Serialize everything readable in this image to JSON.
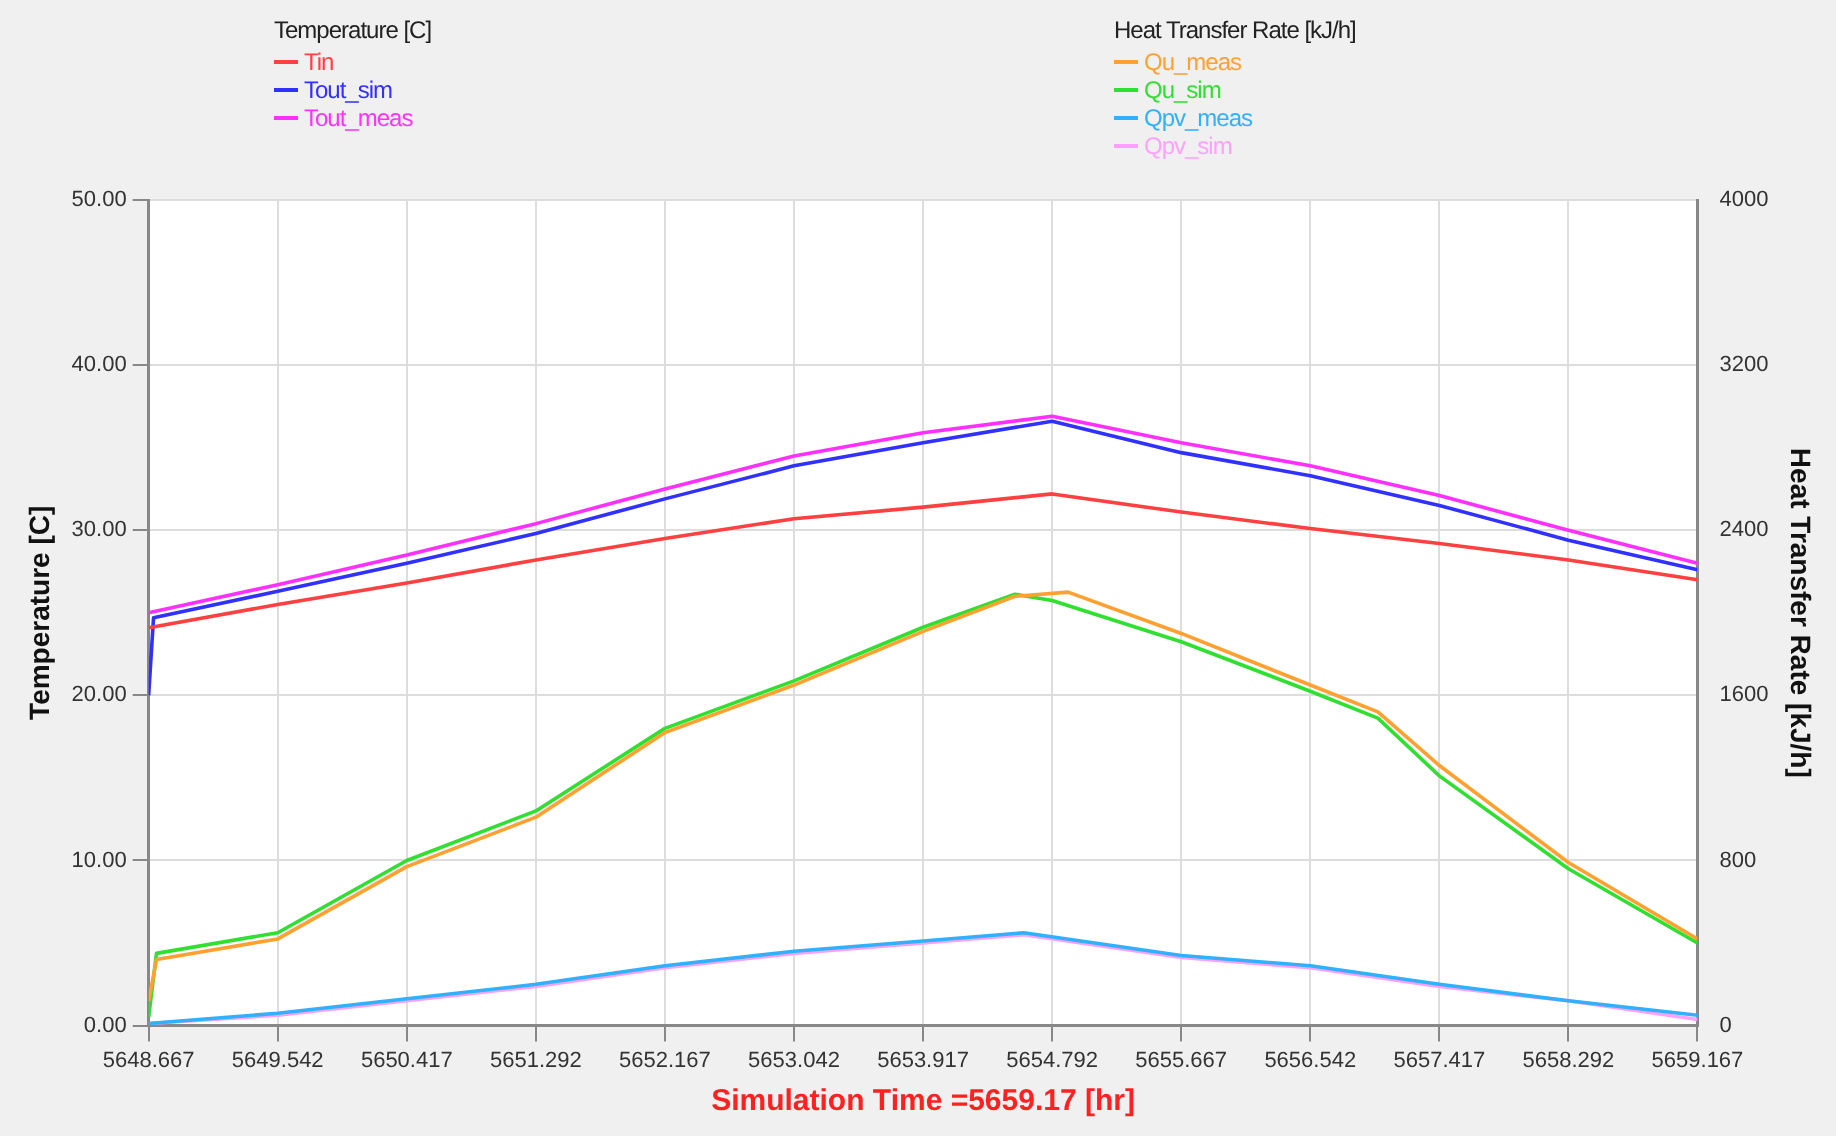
{
  "chart_data": {
    "type": "line",
    "xlabel": "Simulation Time =5659.17 [hr]",
    "ylabel": "Temperature [C]",
    "y2label": "Heat Transfer Rate [kJ/h]",
    "legend_title": [
      "Temperature [C]",
      "Heat Transfer Rate [kJ/h]"
    ],
    "legend": "top",
    "grid": true,
    "marker": "none",
    "line_style": "solid",
    "xlim": [
      5648.667,
      5659.167
    ],
    "xticks": [
      5648.667,
      5649.542,
      5650.417,
      5651.292,
      5652.167,
      5653.042,
      5653.917,
      5654.792,
      5655.667,
      5656.542,
      5657.417,
      5658.292,
      5659.167
    ],
    "ylim": [
      0,
      50
    ],
    "yticks": [
      {
        "value": 0,
        "label": "0.00"
      },
      {
        "value": 10,
        "label": "10.00"
      },
      {
        "value": 20,
        "label": "20.00"
      },
      {
        "value": 30,
        "label": "30.00"
      },
      {
        "value": 40,
        "label": "40.00"
      },
      {
        "value": 50,
        "label": "50.00"
      }
    ],
    "y2lim": [
      0,
      4000
    ],
    "y2ticks": [
      0,
      800,
      1600,
      2400,
      3200,
      4000
    ],
    "series": [
      {
        "name": "Tin",
        "color": "#ff4040",
        "x": [
          5648.667,
          5649.542,
          5650.417,
          5651.292,
          5652.167,
          5653.042,
          5653.917,
          5654.792,
          5655.667,
          5656.542,
          5657.417,
          5658.292,
          5659.167
        ],
        "values": [
          24.1,
          25.5,
          26.8,
          28.2,
          29.5,
          30.7,
          31.4,
          32.2,
          31.1,
          30.1,
          29.2,
          28.2,
          27.0
        ]
      },
      {
        "name": "Tout_sim",
        "color": "#3030ff",
        "x": [
          5648.667,
          5648.7,
          5649.542,
          5650.417,
          5651.292,
          5652.167,
          5653.042,
          5653.917,
          5654.792,
          5655.667,
          5656.542,
          5657.417,
          5658.292,
          5659.167
        ],
        "values": [
          20.0,
          24.7,
          26.3,
          28.0,
          29.8,
          31.9,
          33.9,
          35.3,
          36.6,
          34.7,
          33.3,
          31.5,
          29.4,
          27.6
        ]
      },
      {
        "name": "Tout_meas",
        "color": "#ff30ff",
        "x": [
          5648.667,
          5649.542,
          5650.417,
          5651.292,
          5652.167,
          5653.042,
          5653.917,
          5654.792,
          5655.667,
          5656.542,
          5657.417,
          5658.292,
          5659.167
        ],
        "values": [
          25.0,
          26.7,
          28.5,
          30.4,
          32.5,
          34.5,
          35.9,
          36.9,
          35.3,
          33.9,
          32.1,
          30.0,
          28.0
        ]
      },
      {
        "name": "Qu_meas",
        "color": "#ffa030",
        "axis": "y2",
        "x": [
          5648.667,
          5648.72,
          5649.542,
          5650.417,
          5651.292,
          5652.167,
          5653.042,
          5653.917,
          5654.54,
          5654.9,
          5655.667,
          5656.542,
          5657.0,
          5657.417,
          5658.292,
          5659.167
        ],
        "values": [
          120,
          320,
          420,
          770,
          1010,
          1420,
          1650,
          1910,
          2080,
          2100,
          1900,
          1650,
          1520,
          1260,
          790,
          420
        ]
      },
      {
        "name": "Qu_sim",
        "color": "#30e030",
        "axis": "y2",
        "x": [
          5648.667,
          5648.72,
          5649.542,
          5650.417,
          5651.292,
          5652.167,
          5653.042,
          5653.917,
          5654.54,
          5654.792,
          5655.667,
          5656.542,
          5657.0,
          5657.417,
          5658.292,
          5659.167
        ],
        "values": [
          40,
          350,
          450,
          800,
          1040,
          1440,
          1670,
          1930,
          2090,
          2060,
          1860,
          1620,
          1490,
          1210,
          760,
          400
        ]
      },
      {
        "name": "Qpv_meas",
        "color": "#30b0ff",
        "axis": "y2",
        "x": [
          5648.667,
          5649.542,
          5650.417,
          5651.292,
          5652.167,
          5653.042,
          5653.917,
          5654.6,
          5655.667,
          5656.542,
          5657.417,
          5658.292,
          5659.167
        ],
        "values": [
          10,
          60,
          130,
          200,
          290,
          360,
          410,
          450,
          340,
          290,
          200,
          120,
          50
        ]
      },
      {
        "name": "Qpv_sim",
        "color": "#ffa0ff",
        "axis": "y2",
        "x": [
          5648.667,
          5649.542,
          5650.417,
          5651.292,
          5652.167,
          5653.042,
          5653.917,
          5654.6,
          5655.667,
          5656.542,
          5657.417,
          5658.292,
          5659.167
        ],
        "values": [
          10,
          50,
          120,
          190,
          280,
          350,
          400,
          440,
          330,
          280,
          190,
          120,
          30
        ]
      }
    ]
  }
}
